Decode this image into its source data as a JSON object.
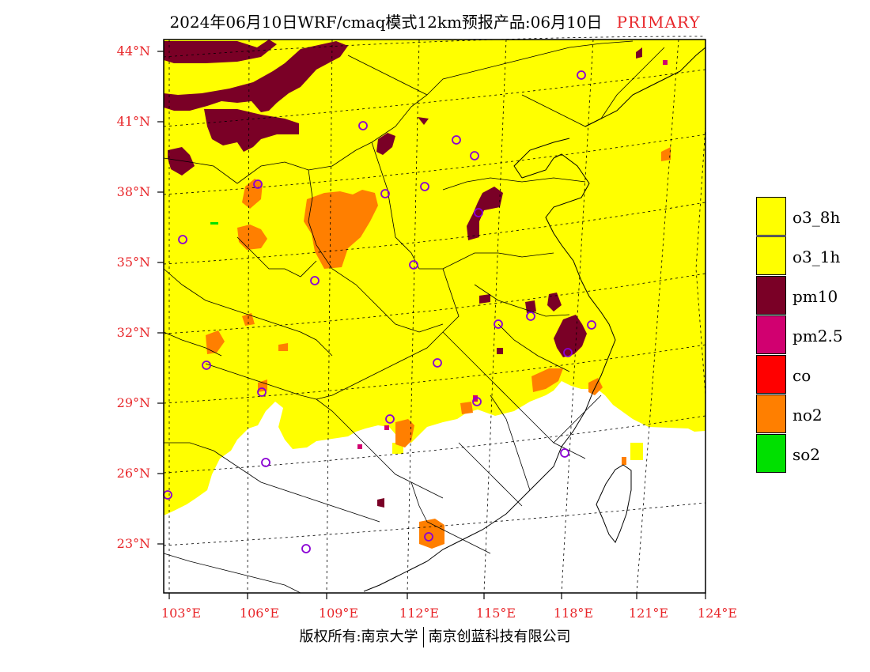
{
  "title": {
    "main": "2024年06月10日WRF/cmaq模式12km预报产品:06月10日",
    "tag": "PRIMARY"
  },
  "colors": {
    "o3_8h": "#ffff00",
    "o3_1h": "#ffff00",
    "pm10": "#7a0026",
    "pm25": "#d10070",
    "co": "#ff0000",
    "no2": "#ff7f00",
    "so2": "#00e000",
    "axis_label": "#e8262a",
    "station_marker": "#8a00d4"
  },
  "axes": {
    "lat_labels": [
      "44°N",
      "41°N",
      "38°N",
      "35°N",
      "32°N",
      "29°N",
      "26°N",
      "23°N"
    ],
    "lon_labels": [
      "103°E",
      "106°E",
      "109°E",
      "112°E",
      "115°E",
      "118°E",
      "121°E",
      "124°E"
    ]
  },
  "legend": [
    {
      "label": "o3_8h",
      "color": "#ffff00"
    },
    {
      "label": "o3_1h",
      "color": "#ffff00"
    },
    {
      "label": "pm10",
      "color": "#7a0026"
    },
    {
      "label": "pm2.5",
      "color": "#d10070"
    },
    {
      "label": "co",
      "color": "#ff0000"
    },
    {
      "label": "no2",
      "color": "#ff7f00"
    },
    {
      "label": "so2",
      "color": "#00e000"
    }
  ],
  "footer": {
    "left": "版权所有:南京大学",
    "right": "南京创蓝科技有限公司"
  }
}
